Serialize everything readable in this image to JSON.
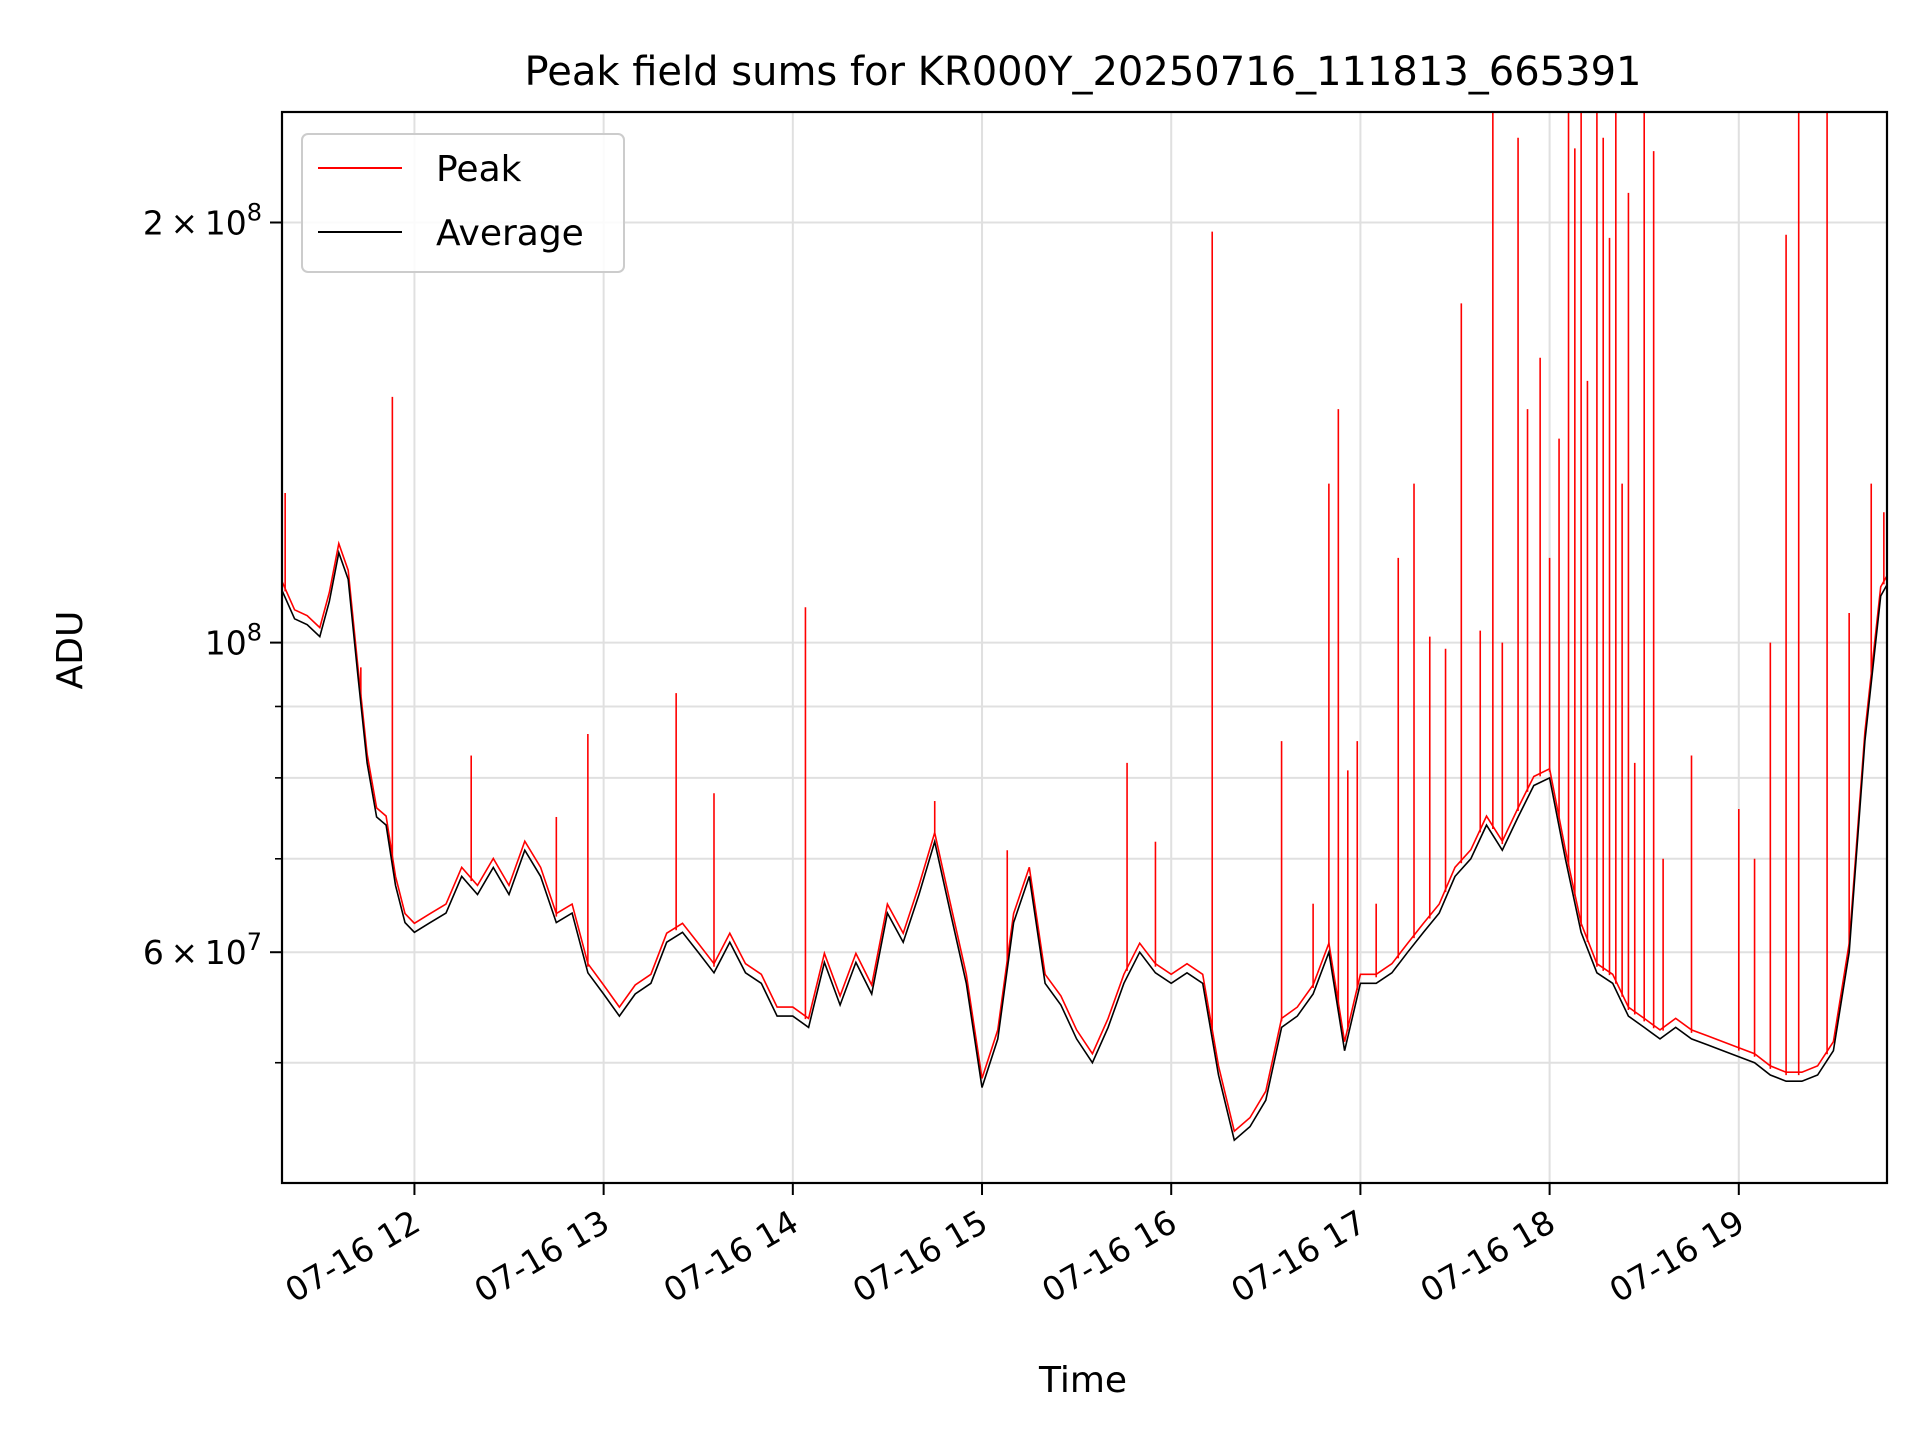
{
  "chart_data": {
    "type": "line",
    "title": "Peak field sums for KR000Y_20250716_111813_665391",
    "xlabel": "Time",
    "ylabel": "ADU",
    "yscale": "log",
    "ylim": [
      41000000,
      240000000
    ],
    "xlim": [
      "2025-07-16T11:18",
      "2025-07-16T19:47"
    ],
    "grid": true,
    "legend_position": "top-left",
    "x_ticks": [
      {
        "t": "2025-07-16T12:00",
        "label": "07-16 12"
      },
      {
        "t": "2025-07-16T13:00",
        "label": "07-16 13"
      },
      {
        "t": "2025-07-16T14:00",
        "label": "07-16 14"
      },
      {
        "t": "2025-07-16T15:00",
        "label": "07-16 15"
      },
      {
        "t": "2025-07-16T16:00",
        "label": "07-16 16"
      },
      {
        "t": "2025-07-16T17:00",
        "label": "07-16 17"
      },
      {
        "t": "2025-07-16T18:00",
        "label": "07-16 18"
      },
      {
        "t": "2025-07-16T19:00",
        "label": "07-16 19"
      }
    ],
    "y_major_ticks": [
      {
        "v": 60000000,
        "base": "6",
        "mult": "×",
        "pow": "10",
        "exp": "7"
      },
      {
        "v": 100000000,
        "base": "",
        "mult": "",
        "pow": "10",
        "exp": "8"
      },
      {
        "v": 200000000,
        "base": "2",
        "mult": "×",
        "pow": "10",
        "exp": "8"
      }
    ],
    "y_minor_ticks": [
      50000000,
      70000000,
      80000000,
      90000000
    ],
    "series": [
      {
        "name": "Average",
        "color": "#000000",
        "points": [
          [
            "2025-07-16T11:18",
            109000000
          ],
          [
            "2025-07-16T11:22",
            104000000
          ],
          [
            "2025-07-16T11:26",
            103000000
          ],
          [
            "2025-07-16T11:30",
            101000000
          ],
          [
            "2025-07-16T11:33",
            107000000
          ],
          [
            "2025-07-16T11:36",
            116000000
          ],
          [
            "2025-07-16T11:39",
            111000000
          ],
          [
            "2025-07-16T11:42",
            95000000
          ],
          [
            "2025-07-16T11:45",
            82000000
          ],
          [
            "2025-07-16T11:48",
            75000000
          ],
          [
            "2025-07-16T11:51",
            74000000
          ],
          [
            "2025-07-16T11:54",
            67000000
          ],
          [
            "2025-07-16T11:57",
            63000000
          ],
          [
            "2025-07-16T12:00",
            62000000
          ],
          [
            "2025-07-16T12:05",
            63000000
          ],
          [
            "2025-07-16T12:10",
            64000000
          ],
          [
            "2025-07-16T12:15",
            68000000
          ],
          [
            "2025-07-16T12:20",
            66000000
          ],
          [
            "2025-07-16T12:25",
            69000000
          ],
          [
            "2025-07-16T12:30",
            66000000
          ],
          [
            "2025-07-16T12:35",
            71000000
          ],
          [
            "2025-07-16T12:40",
            68000000
          ],
          [
            "2025-07-16T12:45",
            63000000
          ],
          [
            "2025-07-16T12:50",
            64000000
          ],
          [
            "2025-07-16T12:55",
            58000000
          ],
          [
            "2025-07-16T13:00",
            56000000
          ],
          [
            "2025-07-16T13:05",
            54000000
          ],
          [
            "2025-07-16T13:10",
            56000000
          ],
          [
            "2025-07-16T13:15",
            57000000
          ],
          [
            "2025-07-16T13:20",
            61000000
          ],
          [
            "2025-07-16T13:25",
            62000000
          ],
          [
            "2025-07-16T13:30",
            60000000
          ],
          [
            "2025-07-16T13:35",
            58000000
          ],
          [
            "2025-07-16T13:40",
            61000000
          ],
          [
            "2025-07-16T13:45",
            58000000
          ],
          [
            "2025-07-16T13:50",
            57000000
          ],
          [
            "2025-07-16T13:55",
            54000000
          ],
          [
            "2025-07-16T14:00",
            54000000
          ],
          [
            "2025-07-16T14:05",
            53000000
          ],
          [
            "2025-07-16T14:10",
            59000000
          ],
          [
            "2025-07-16T14:15",
            55000000
          ],
          [
            "2025-07-16T14:20",
            59000000
          ],
          [
            "2025-07-16T14:25",
            56000000
          ],
          [
            "2025-07-16T14:30",
            64000000
          ],
          [
            "2025-07-16T14:35",
            61000000
          ],
          [
            "2025-07-16T14:40",
            66000000
          ],
          [
            "2025-07-16T14:45",
            72000000
          ],
          [
            "2025-07-16T14:50",
            64000000
          ],
          [
            "2025-07-16T14:55",
            57000000
          ],
          [
            "2025-07-16T15:00",
            48000000
          ],
          [
            "2025-07-16T15:05",
            52000000
          ],
          [
            "2025-07-16T15:10",
            63000000
          ],
          [
            "2025-07-16T15:15",
            68000000
          ],
          [
            "2025-07-16T15:20",
            57000000
          ],
          [
            "2025-07-16T15:25",
            55000000
          ],
          [
            "2025-07-16T15:30",
            52000000
          ],
          [
            "2025-07-16T15:35",
            50000000
          ],
          [
            "2025-07-16T15:40",
            53000000
          ],
          [
            "2025-07-16T15:45",
            57000000
          ],
          [
            "2025-07-16T15:50",
            60000000
          ],
          [
            "2025-07-16T15:55",
            58000000
          ],
          [
            "2025-07-16T16:00",
            57000000
          ],
          [
            "2025-07-16T16:05",
            58000000
          ],
          [
            "2025-07-16T16:10",
            57000000
          ],
          [
            "2025-07-16T16:15",
            49000000
          ],
          [
            "2025-07-16T16:20",
            44000000
          ],
          [
            "2025-07-16T16:25",
            45000000
          ],
          [
            "2025-07-16T16:30",
            47000000
          ],
          [
            "2025-07-16T16:35",
            53000000
          ],
          [
            "2025-07-16T16:40",
            54000000
          ],
          [
            "2025-07-16T16:45",
            56000000
          ],
          [
            "2025-07-16T16:50",
            60000000
          ],
          [
            "2025-07-16T16:55",
            51000000
          ],
          [
            "2025-07-16T17:00",
            57000000
          ],
          [
            "2025-07-16T17:05",
            57000000
          ],
          [
            "2025-07-16T17:10",
            58000000
          ],
          [
            "2025-07-16T17:15",
            60000000
          ],
          [
            "2025-07-16T17:20",
            62000000
          ],
          [
            "2025-07-16T17:25",
            64000000
          ],
          [
            "2025-07-16T17:30",
            68000000
          ],
          [
            "2025-07-16T17:35",
            70000000
          ],
          [
            "2025-07-16T17:40",
            74000000
          ],
          [
            "2025-07-16T17:45",
            71000000
          ],
          [
            "2025-07-16T17:50",
            75000000
          ],
          [
            "2025-07-16T17:55",
            79000000
          ],
          [
            "2025-07-16T18:00",
            80000000
          ],
          [
            "2025-07-16T18:05",
            70000000
          ],
          [
            "2025-07-16T18:10",
            62000000
          ],
          [
            "2025-07-16T18:15",
            58000000
          ],
          [
            "2025-07-16T18:20",
            57000000
          ],
          [
            "2025-07-16T18:25",
            54000000
          ],
          [
            "2025-07-16T18:30",
            53000000
          ],
          [
            "2025-07-16T18:35",
            52000000
          ],
          [
            "2025-07-16T18:40",
            53000000
          ],
          [
            "2025-07-16T18:45",
            52000000
          ],
          [
            "2025-07-16T18:50",
            51500000
          ],
          [
            "2025-07-16T18:55",
            51000000
          ],
          [
            "2025-07-16T19:00",
            50500000
          ],
          [
            "2025-07-16T19:05",
            50000000
          ],
          [
            "2025-07-16T19:10",
            49000000
          ],
          [
            "2025-07-16T19:15",
            48500000
          ],
          [
            "2025-07-16T19:20",
            48500000
          ],
          [
            "2025-07-16T19:25",
            49000000
          ],
          [
            "2025-07-16T19:30",
            51000000
          ],
          [
            "2025-07-16T19:35",
            60000000
          ],
          [
            "2025-07-16T19:40",
            85000000
          ],
          [
            "2025-07-16T19:45",
            108000000
          ],
          [
            "2025-07-16T19:47",
            110000000
          ]
        ]
      },
      {
        "name": "Peak",
        "color": "#ff0000",
        "points": [
          [
            "2025-07-16T11:19",
            128000000
          ],
          [
            "2025-07-16T11:43",
            96000000
          ],
          [
            "2025-07-16T11:53",
            150000000
          ],
          [
            "2025-07-16T12:18",
            83000000
          ],
          [
            "2025-07-16T12:45",
            75000000
          ],
          [
            "2025-07-16T12:55",
            86000000
          ],
          [
            "2025-07-16T13:23",
            92000000
          ],
          [
            "2025-07-16T13:35",
            78000000
          ],
          [
            "2025-07-16T14:04",
            106000000
          ],
          [
            "2025-07-16T14:45",
            77000000
          ],
          [
            "2025-07-16T15:08",
            71000000
          ],
          [
            "2025-07-16T15:46",
            82000000
          ],
          [
            "2025-07-16T15:55",
            72000000
          ],
          [
            "2025-07-16T16:13",
            197000000
          ],
          [
            "2025-07-16T16:35",
            85000000
          ],
          [
            "2025-07-16T16:45",
            65000000
          ],
          [
            "2025-07-16T16:50",
            130000000
          ],
          [
            "2025-07-16T16:53",
            147000000
          ],
          [
            "2025-07-16T16:56",
            81000000
          ],
          [
            "2025-07-16T16:59",
            85000000
          ],
          [
            "2025-07-16T17:05",
            65000000
          ],
          [
            "2025-07-16T17:12",
            115000000
          ],
          [
            "2025-07-16T17:17",
            130000000
          ],
          [
            "2025-07-16T17:22",
            101000000
          ],
          [
            "2025-07-16T17:27",
            99000000
          ],
          [
            "2025-07-16T17:32",
            175000000
          ],
          [
            "2025-07-16T17:38",
            102000000
          ],
          [
            "2025-07-16T17:42",
            240000000
          ],
          [
            "2025-07-16T17:45",
            100000000
          ],
          [
            "2025-07-16T17:50",
            230000000
          ],
          [
            "2025-07-16T17:53",
            147000000
          ],
          [
            "2025-07-16T17:57",
            160000000
          ],
          [
            "2025-07-16T18:00",
            115000000
          ],
          [
            "2025-07-16T18:03",
            140000000
          ],
          [
            "2025-07-16T18:06",
            240000000
          ],
          [
            "2025-07-16T18:08",
            226000000
          ],
          [
            "2025-07-16T18:10",
            240000000
          ],
          [
            "2025-07-16T18:12",
            154000000
          ],
          [
            "2025-07-16T18:15",
            240000000
          ],
          [
            "2025-07-16T18:17",
            230000000
          ],
          [
            "2025-07-16T18:19",
            195000000
          ],
          [
            "2025-07-16T18:21",
            240000000
          ],
          [
            "2025-07-16T18:23",
            130000000
          ],
          [
            "2025-07-16T18:25",
            210000000
          ],
          [
            "2025-07-16T18:27",
            82000000
          ],
          [
            "2025-07-16T18:30",
            240000000
          ],
          [
            "2025-07-16T18:33",
            225000000
          ],
          [
            "2025-07-16T18:36",
            70000000
          ],
          [
            "2025-07-16T18:45",
            83000000
          ],
          [
            "2025-07-16T19:00",
            76000000
          ],
          [
            "2025-07-16T19:05",
            70000000
          ],
          [
            "2025-07-16T19:10",
            100000000
          ],
          [
            "2025-07-16T19:15",
            196000000
          ],
          [
            "2025-07-16T19:19",
            240000000
          ],
          [
            "2025-07-16T19:28",
            240000000
          ],
          [
            "2025-07-16T19:35",
            105000000
          ],
          [
            "2025-07-16T19:42",
            130000000
          ],
          [
            "2025-07-16T19:46",
            124000000
          ]
        ]
      }
    ]
  }
}
